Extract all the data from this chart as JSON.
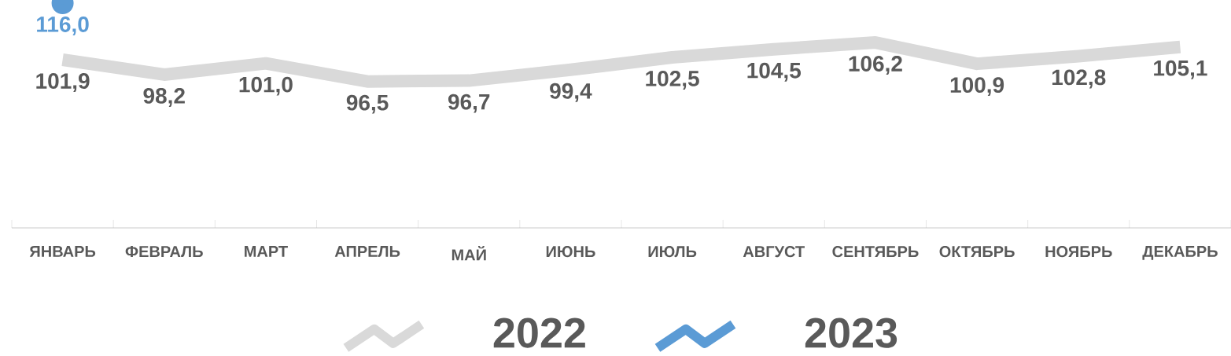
{
  "chart_data": {
    "type": "line",
    "categories": [
      "ЯНВАРЬ",
      "ФЕВРАЛЬ",
      "МАРТ",
      "АПРЕЛЬ",
      "МАЙ",
      "ИЮНЬ",
      "ИЮЛЬ",
      "АВГУСТ",
      "СЕНТЯБРЬ",
      "ОКТЯБРЬ",
      "НОЯБРЬ",
      "ДЕКАБРЬ"
    ],
    "series": [
      {
        "name": "2022",
        "color": "#d9d9d9",
        "values": [
          101.9,
          98.2,
          101.0,
          96.5,
          96.7,
          99.4,
          102.5,
          104.5,
          106.2,
          100.9,
          102.8,
          105.1
        ],
        "value_labels": [
          "101,9",
          "98,2",
          "101,0",
          "96,5",
          "96,7",
          "99,4",
          "102,5",
          "104,5",
          "106,2",
          "100,9",
          "102,8",
          "105,1"
        ]
      },
      {
        "name": "2023",
        "color": "#5b9bd5",
        "marker": "circle",
        "values": [
          116.0,
          null,
          null,
          null,
          null,
          null,
          null,
          null,
          null,
          null,
          null,
          null
        ],
        "value_labels": [
          "116,0",
          null,
          null,
          null,
          null,
          null,
          null,
          null,
          null,
          null,
          null,
          null
        ]
      }
    ],
    "tick_labels": "x",
    "legend": "bottom",
    "line_style": "solid"
  }
}
